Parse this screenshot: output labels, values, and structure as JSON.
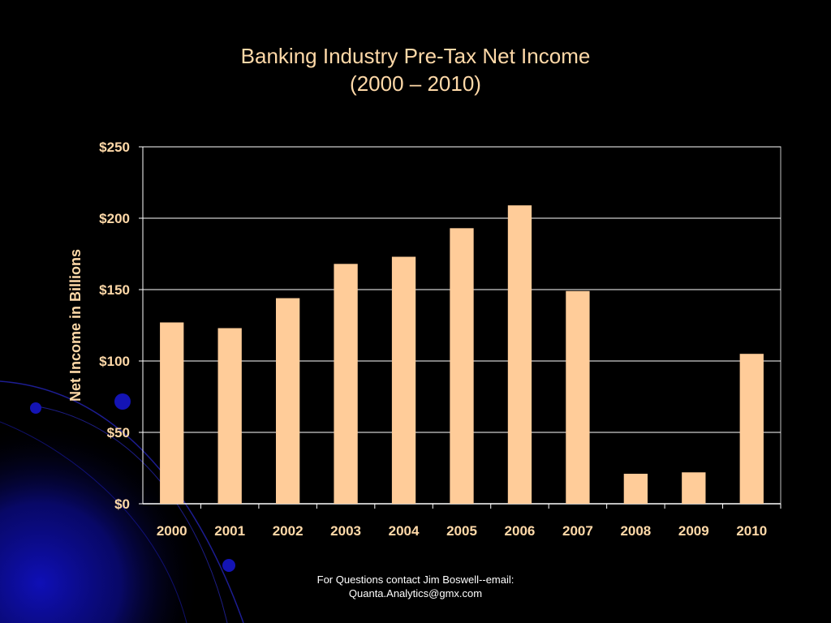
{
  "slide": {
    "title_line1": "Banking Industry Pre-Tax Net Income",
    "title_line2": "(2000 – 2010)",
    "footer_line1": "For Questions contact Jim Boswell--email:",
    "footer_line2": "Quanta.Analytics@gmx.com"
  },
  "colors": {
    "background": "#000000",
    "bar_fill": "#FFCC99",
    "text": "#FFD9A8",
    "gridline": "#FFFFFF",
    "decoration": "#0A0A8C"
  },
  "chart_data": {
    "type": "bar",
    "title": "Banking Industry Pre-Tax Net Income (2000 – 2010)",
    "ylabel": "Net Income in Billions",
    "xlabel": "",
    "categories": [
      "2000",
      "2001",
      "2002",
      "2003",
      "2004",
      "2005",
      "2006",
      "2007",
      "2008",
      "2009",
      "2010"
    ],
    "values": [
      127,
      123,
      144,
      168,
      173,
      193,
      209,
      149,
      21,
      22,
      105
    ],
    "ylim": [
      0,
      250
    ],
    "yticks": [
      0,
      50,
      100,
      150,
      200,
      250
    ],
    "ytick_labels": [
      "$0",
      "$50",
      "$100",
      "$150",
      "$200",
      "$250"
    ],
    "grid": true,
    "legend": "none"
  }
}
